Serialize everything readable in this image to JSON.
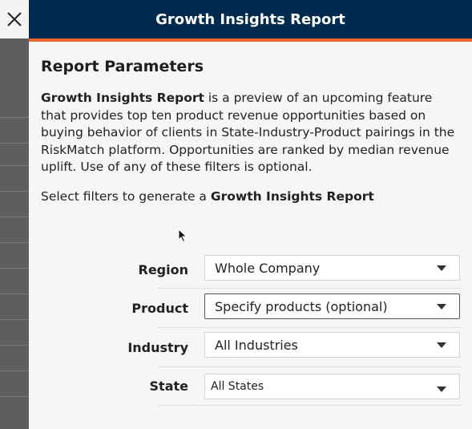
{
  "panel": {
    "title": "Growth Insights Report"
  },
  "params": {
    "heading": "Report Parameters",
    "desc_bold": "Growth Insights Report",
    "desc_rest": " is a preview of an upcoming feature that provides top ten product revenue opportunities based on buying behavior of clients in State-Industry-Product pairings in the RiskMatch platform. Opportunities are ranked by median revenue uplift. Use of any of these filters is optional.",
    "prompt_text": "Select filters to generate a ",
    "prompt_bold": "Growth Insights Report"
  },
  "filters": {
    "region": {
      "label": "Region",
      "value": "Whole Company"
    },
    "product": {
      "label": "Product",
      "value": "Specify products (optional)"
    },
    "industry": {
      "label": "Industry",
      "value": "All Industries"
    },
    "state": {
      "label": "State",
      "value": "All States"
    }
  },
  "icons": {
    "close": "close-icon",
    "cursor": "mouse-pointer-icon",
    "caret": "chevron-down-icon"
  },
  "colors": {
    "header_bg": "#002b4f",
    "header_accent": "#e8642c",
    "panel_bg": "#f6f6f6",
    "backdrop": "#5e5e5e"
  }
}
